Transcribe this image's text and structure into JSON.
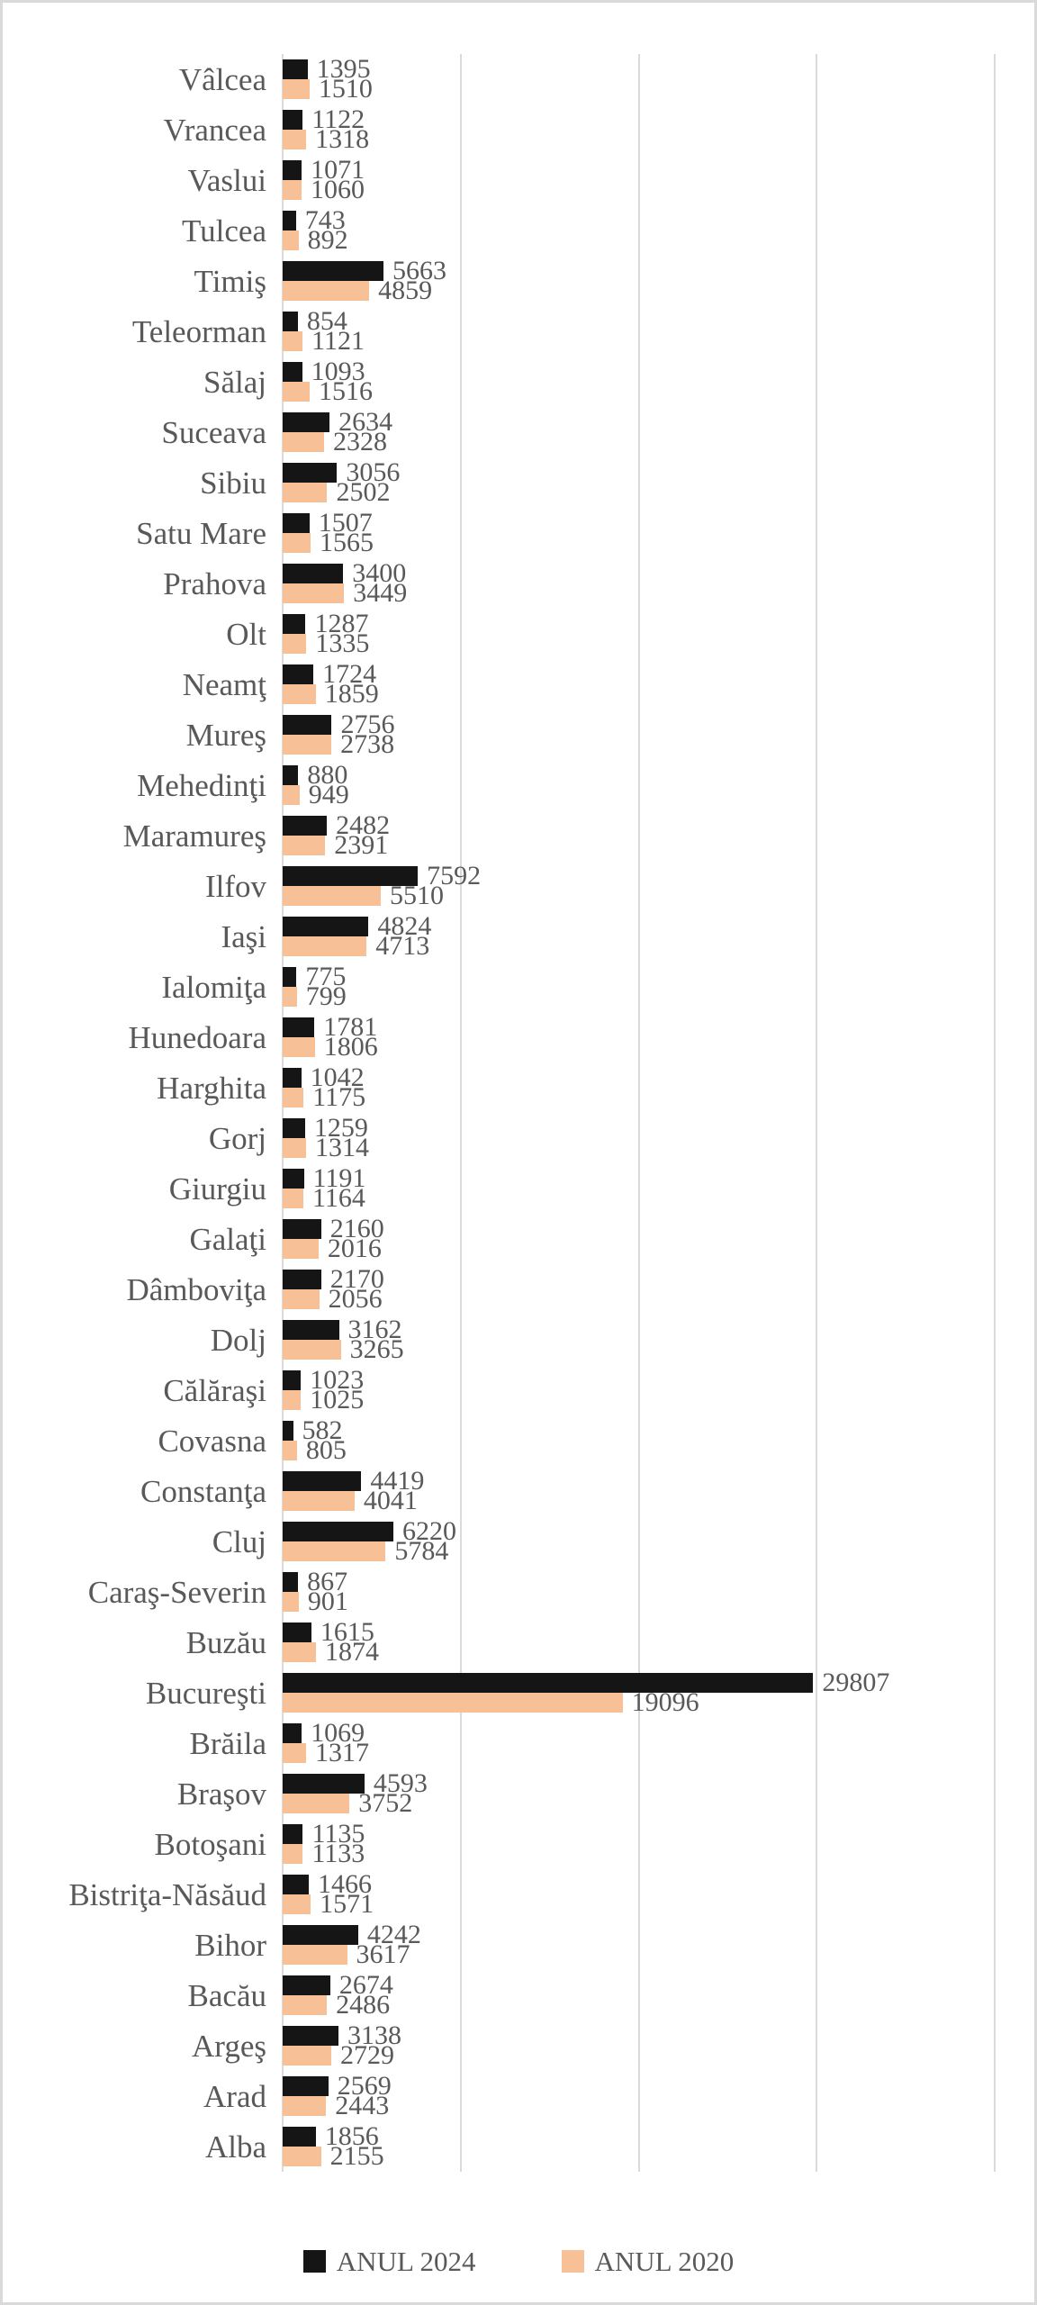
{
  "chart_data": {
    "type": "bar",
    "orientation": "horizontal",
    "title": "",
    "xlabel": "",
    "ylabel": "",
    "xlim": [
      0,
      40000
    ],
    "gridline_step": 10000,
    "grid": true,
    "legend_position": "bottom",
    "categories": [
      "Vâlcea",
      "Vrancea",
      "Vaslui",
      "Tulcea",
      "Timiş",
      "Teleorman",
      "Sălaj",
      "Suceava",
      "Sibiu",
      "Satu Mare",
      "Prahova",
      "Olt",
      "Neamţ",
      "Mureş",
      "Mehedinţi",
      "Maramureş",
      "Ilfov",
      "Iaşi",
      "Ialomiţa",
      "Hunedoara",
      "Harghita",
      "Gorj",
      "Giurgiu",
      "Galaţi",
      "Dâmboviţa",
      "Dolj",
      "Călăraşi",
      "Covasna",
      "Constanţa",
      "Cluj",
      "Caraş-Severin",
      "Buzău",
      "Bucureşti",
      "Brăila",
      "Braşov",
      "Botoşani",
      "Bistriţa-Năsăud",
      "Bihor",
      "Bacău",
      "Argeş",
      "Arad",
      "Alba"
    ],
    "series": [
      {
        "name": "ANUL 2024",
        "color": "#151515",
        "values": [
          1395,
          1122,
          1071,
          743,
          5663,
          854,
          1093,
          2634,
          3056,
          1507,
          3400,
          1287,
          1724,
          2756,
          880,
          2482,
          7592,
          4824,
          775,
          1781,
          1042,
          1259,
          1191,
          2160,
          2170,
          3162,
          1023,
          582,
          4419,
          6220,
          867,
          1615,
          29807,
          1069,
          4593,
          1135,
          1466,
          4242,
          2674,
          3138,
          2569,
          1856
        ]
      },
      {
        "name": "ANUL 2020",
        "color": "#f7c096",
        "values": [
          1510,
          1318,
          1060,
          892,
          4859,
          1121,
          1516,
          2328,
          2502,
          1565,
          3449,
          1335,
          1859,
          2738,
          949,
          2391,
          5510,
          4713,
          799,
          1806,
          1175,
          1314,
          1164,
          2016,
          2056,
          3265,
          1025,
          805,
          4041,
          5784,
          901,
          1874,
          19096,
          1317,
          3752,
          1133,
          1571,
          3617,
          2486,
          2729,
          2443,
          2155
        ]
      }
    ]
  },
  "colors": {
    "text": "#595959",
    "gridline": "#dadada",
    "frame_border": "#d9d9d9",
    "background": "#ffffff"
  }
}
